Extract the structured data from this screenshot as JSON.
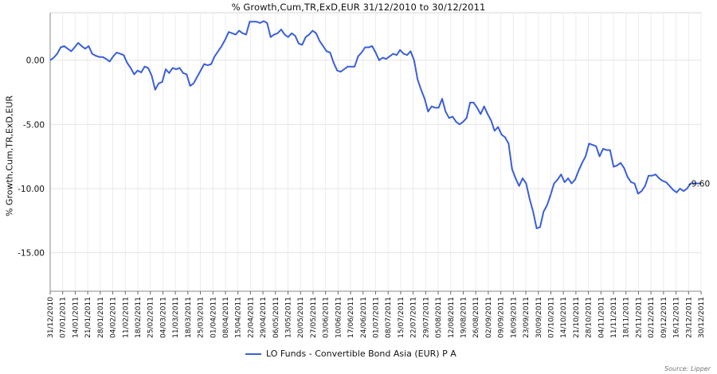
{
  "chart_data": {
    "type": "line",
    "title": "% Growth,Cum,TR,ExD,EUR 31/12/2010 to 30/12/2011",
    "ylabel": "% Growth,Cum,TR,ExD,EUR",
    "xlabel": "",
    "ylim": [
      -18,
      3.7
    ],
    "yticks": [
      0.0,
      -5.0,
      -10.0,
      -15.0
    ],
    "ytick_labels": [
      "0.00",
      "-5.00",
      "-10.00",
      "-15.00"
    ],
    "grid": true,
    "legend_position": "bottom",
    "line_color": "#3b5fd9",
    "x_tick_labels": [
      "31/12/2010",
      "07/01/2011",
      "14/01/2011",
      "21/01/2011",
      "28/01/2011",
      "04/02/2011",
      "11/02/2011",
      "18/02/2011",
      "25/02/2011",
      "04/03/2011",
      "11/03/2011",
      "18/03/2011",
      "25/03/2011",
      "01/04/2011",
      "08/04/2011",
      "15/04/2011",
      "22/04/2011",
      "29/04/2011",
      "06/05/2011",
      "13/05/2011",
      "20/05/2011",
      "27/05/2011",
      "03/06/2011",
      "10/06/2011",
      "17/06/2011",
      "24/06/2011",
      "01/07/2011",
      "08/07/2011",
      "15/07/2011",
      "22/07/2011",
      "29/07/2011",
      "05/08/2011",
      "12/08/2011",
      "19/08/2011",
      "26/08/2011",
      "02/09/2011",
      "09/09/2011",
      "16/09/2011",
      "23/09/2011",
      "30/09/2011",
      "07/10/2011",
      "14/10/2011",
      "21/10/2011",
      "28/10/2011",
      "04/11/2011",
      "11/11/2011",
      "18/11/2011",
      "25/11/2011",
      "02/12/2011",
      "09/12/2011",
      "16/12/2011",
      "23/12/2011",
      "30/12/2011"
    ],
    "series": [
      {
        "name": "LO Funds - Convertible Bond Asia (EUR) P A",
        "end_label": "-9.60",
        "points": [
          [
            0,
            0.0
          ],
          [
            1,
            0.2
          ],
          [
            2,
            0.5
          ],
          [
            3,
            1.0
          ],
          [
            4,
            1.1
          ],
          [
            5,
            0.9
          ],
          [
            6,
            0.7
          ],
          [
            7,
            1.0
          ],
          [
            8,
            1.35
          ],
          [
            9,
            1.1
          ],
          [
            10,
            0.9
          ],
          [
            11,
            1.1
          ],
          [
            12,
            0.5
          ],
          [
            13,
            0.35
          ],
          [
            14,
            0.25
          ],
          [
            15,
            0.25
          ],
          [
            16,
            0.1
          ],
          [
            17,
            -0.1
          ],
          [
            18,
            0.3
          ],
          [
            19,
            0.6
          ],
          [
            20,
            0.5
          ],
          [
            21,
            0.4
          ],
          [
            22,
            -0.2
          ],
          [
            23,
            -0.6
          ],
          [
            24,
            -1.1
          ],
          [
            25,
            -0.8
          ],
          [
            26,
            -0.95
          ],
          [
            27,
            -0.5
          ],
          [
            28,
            -0.6
          ],
          [
            29,
            -1.2
          ],
          [
            30,
            -2.3
          ],
          [
            31,
            -1.8
          ],
          [
            32,
            -1.7
          ],
          [
            33,
            -0.7
          ],
          [
            34,
            -1.0
          ],
          [
            35,
            -0.6
          ],
          [
            36,
            -0.7
          ],
          [
            37,
            -0.6
          ],
          [
            38,
            -1.0
          ],
          [
            39,
            -1.1
          ],
          [
            40,
            -2.0
          ],
          [
            41,
            -1.8
          ],
          [
            42,
            -1.3
          ],
          [
            43,
            -0.8
          ],
          [
            44,
            -0.3
          ],
          [
            45,
            -0.4
          ],
          [
            46,
            -0.3
          ],
          [
            47,
            0.3
          ],
          [
            48,
            0.7
          ],
          [
            49,
            1.1
          ],
          [
            50,
            1.6
          ],
          [
            51,
            2.2
          ],
          [
            52,
            2.1
          ],
          [
            53,
            2.0
          ],
          [
            54,
            2.3
          ],
          [
            55,
            2.1
          ],
          [
            56,
            2.0
          ],
          [
            57,
            3.0
          ],
          [
            58,
            3.0
          ],
          [
            59,
            3.0
          ],
          [
            60,
            2.9
          ],
          [
            61,
            3.05
          ],
          [
            62,
            2.9
          ],
          [
            63,
            1.8
          ],
          [
            64,
            2.0
          ],
          [
            65,
            2.1
          ],
          [
            66,
            2.4
          ],
          [
            67,
            2.0
          ],
          [
            68,
            1.8
          ],
          [
            69,
            2.1
          ],
          [
            70,
            1.9
          ],
          [
            71,
            1.3
          ],
          [
            72,
            1.2
          ],
          [
            73,
            1.8
          ],
          [
            74,
            2.0
          ],
          [
            75,
            2.3
          ],
          [
            76,
            2.1
          ],
          [
            77,
            1.5
          ],
          [
            78,
            1.1
          ],
          [
            79,
            0.7
          ],
          [
            80,
            0.6
          ],
          [
            81,
            -0.2
          ],
          [
            82,
            -0.8
          ],
          [
            83,
            -0.9
          ],
          [
            84,
            -0.7
          ],
          [
            85,
            -0.5
          ],
          [
            86,
            -0.5
          ],
          [
            87,
            -0.5
          ],
          [
            88,
            0.3
          ],
          [
            89,
            0.6
          ],
          [
            90,
            1.0
          ],
          [
            91,
            1.0
          ],
          [
            92,
            1.1
          ],
          [
            93,
            0.6
          ],
          [
            94,
            0.0
          ],
          [
            95,
            0.2
          ],
          [
            96,
            0.1
          ],
          [
            97,
            0.3
          ],
          [
            98,
            0.5
          ],
          [
            99,
            0.4
          ],
          [
            100,
            0.8
          ],
          [
            101,
            0.5
          ],
          [
            102,
            0.4
          ],
          [
            103,
            0.7
          ],
          [
            104,
            0.0
          ],
          [
            105,
            -1.5
          ],
          [
            106,
            -2.3
          ],
          [
            107,
            -3.0
          ],
          [
            108,
            -4.0
          ],
          [
            109,
            -3.6
          ],
          [
            110,
            -3.7
          ],
          [
            111,
            -3.7
          ],
          [
            112,
            -3.0
          ],
          [
            113,
            -4.0
          ],
          [
            114,
            -4.5
          ],
          [
            115,
            -4.4
          ],
          [
            116,
            -4.8
          ],
          [
            117,
            -5.0
          ],
          [
            118,
            -4.8
          ],
          [
            119,
            -4.5
          ],
          [
            120,
            -3.3
          ],
          [
            121,
            -3.3
          ],
          [
            122,
            -3.7
          ],
          [
            123,
            -4.2
          ],
          [
            124,
            -3.6
          ],
          [
            125,
            -4.2
          ],
          [
            126,
            -4.7
          ],
          [
            127,
            -5.5
          ],
          [
            128,
            -5.2
          ],
          [
            129,
            -5.8
          ],
          [
            130,
            -6.0
          ],
          [
            131,
            -6.5
          ],
          [
            132,
            -8.5
          ],
          [
            133,
            -9.2
          ],
          [
            134,
            -9.8
          ],
          [
            135,
            -9.2
          ],
          [
            136,
            -9.6
          ],
          [
            137,
            -10.8
          ],
          [
            138,
            -11.8
          ],
          [
            139,
            -13.1
          ],
          [
            140,
            -13.0
          ],
          [
            141,
            -11.8
          ],
          [
            142,
            -11.3
          ],
          [
            143,
            -10.5
          ],
          [
            144,
            -9.6
          ],
          [
            145,
            -9.3
          ],
          [
            146,
            -8.9
          ],
          [
            147,
            -9.5
          ],
          [
            148,
            -9.2
          ],
          [
            149,
            -9.6
          ],
          [
            150,
            -9.3
          ],
          [
            151,
            -8.6
          ],
          [
            152,
            -8.0
          ],
          [
            153,
            -7.5
          ],
          [
            154,
            -6.5
          ],
          [
            155,
            -6.6
          ],
          [
            156,
            -6.7
          ],
          [
            157,
            -7.5
          ],
          [
            158,
            -6.9
          ],
          [
            159,
            -7.0
          ],
          [
            160,
            -7.0
          ],
          [
            161,
            -8.3
          ],
          [
            162,
            -8.2
          ],
          [
            163,
            -8.0
          ],
          [
            164,
            -8.4
          ],
          [
            165,
            -9.1
          ],
          [
            166,
            -9.5
          ],
          [
            167,
            -9.6
          ],
          [
            168,
            -10.4
          ],
          [
            169,
            -10.2
          ],
          [
            170,
            -9.8
          ],
          [
            171,
            -9.0
          ],
          [
            172,
            -9.0
          ],
          [
            173,
            -8.9
          ],
          [
            174,
            -9.2
          ],
          [
            175,
            -9.4
          ],
          [
            176,
            -9.5
          ],
          [
            177,
            -9.8
          ],
          [
            178,
            -10.1
          ],
          [
            179,
            -10.3
          ],
          [
            180,
            -10.0
          ],
          [
            181,
            -10.2
          ],
          [
            182,
            -10.0
          ],
          [
            183,
            -9.6
          ],
          [
            184,
            -9.6
          ],
          [
            185,
            -9.6
          ],
          [
            186,
            -9.6
          ]
        ]
      }
    ]
  },
  "source_note": "Source: Lipper"
}
